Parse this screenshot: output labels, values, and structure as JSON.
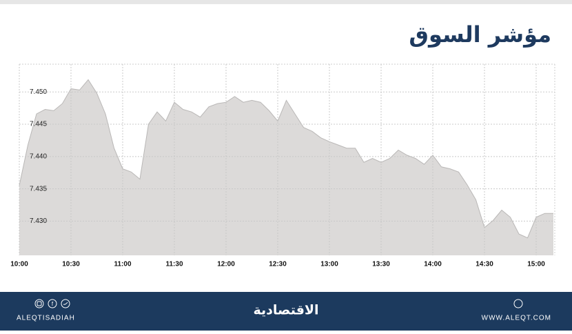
{
  "header": {
    "title": "مؤشر السوق"
  },
  "chart_data": {
    "type": "area",
    "x": [
      "10:00",
      "10:05",
      "10:10",
      "10:15",
      "10:20",
      "10:25",
      "10:30",
      "10:35",
      "10:40",
      "10:45",
      "10:50",
      "10:55",
      "11:00",
      "11:05",
      "11:10",
      "11:15",
      "11:20",
      "11:25",
      "11:30",
      "11:35",
      "11:40",
      "11:45",
      "11:50",
      "11:55",
      "12:00",
      "12:05",
      "12:10",
      "12:15",
      "12:20",
      "12:25",
      "12:30",
      "12:35",
      "12:40",
      "12:45",
      "12:50",
      "12:55",
      "13:00",
      "13:05",
      "13:10",
      "13:15",
      "13:20",
      "13:25",
      "13:30",
      "13:35",
      "13:40",
      "13:45",
      "13:50",
      "13:55",
      "14:00",
      "14:05",
      "14:10",
      "14:15",
      "14:20",
      "14:25",
      "14:30",
      "14:35",
      "14:40",
      "14:45",
      "14:50",
      "14:55",
      "15:00",
      "15:05",
      "15:10"
    ],
    "values": [
      7.4355,
      7.4418,
      7.4466,
      7.4473,
      7.4471,
      7.4482,
      7.4505,
      7.4503,
      7.4519,
      7.4498,
      7.4466,
      7.4413,
      7.4381,
      7.4376,
      7.4365,
      7.445,
      7.4469,
      7.4455,
      7.4484,
      7.4473,
      7.4469,
      7.4461,
      7.4477,
      7.4482,
      7.4484,
      7.4493,
      7.4484,
      7.4487,
      7.4484,
      7.4471,
      7.4455,
      7.4487,
      7.4466,
      7.4445,
      7.4439,
      7.4429,
      7.4423,
      7.4418,
      7.4413,
      7.4413,
      7.4391,
      7.4397,
      7.4391,
      7.4397,
      7.441,
      7.4402,
      7.4397,
      7.4388,
      7.4402,
      7.4384,
      7.4381,
      7.4376,
      7.4356,
      7.4333,
      7.429,
      7.4301,
      7.4317,
      7.4306,
      7.428,
      7.4274,
      7.4306,
      7.4312,
      7.4312
    ],
    "color": "#dcdad9",
    "xlim": [
      "10:00",
      "15:10"
    ],
    "xticks": [
      "10:00",
      "10:30",
      "11:00",
      "11:30",
      "12:00",
      "12:30",
      "13:00",
      "13:30",
      "14:00",
      "14:30",
      "15:00"
    ],
    "ylim": [
      7.4247,
      7.4543
    ],
    "yticks": [
      {
        "value": 7.45,
        "label": "7.450"
      },
      {
        "value": 7.445,
        "label": "7.445"
      },
      {
        "value": 7.44,
        "label": "7.440"
      },
      {
        "value": 7.435,
        "label": "7.435"
      },
      {
        "value": 7.43,
        "label": "7.430"
      }
    ],
    "grid": true
  },
  "footer": {
    "handle": "ALEQTISADIAH",
    "logo": "الاقتصادية",
    "website": "WWW.ALEQT.COM"
  }
}
